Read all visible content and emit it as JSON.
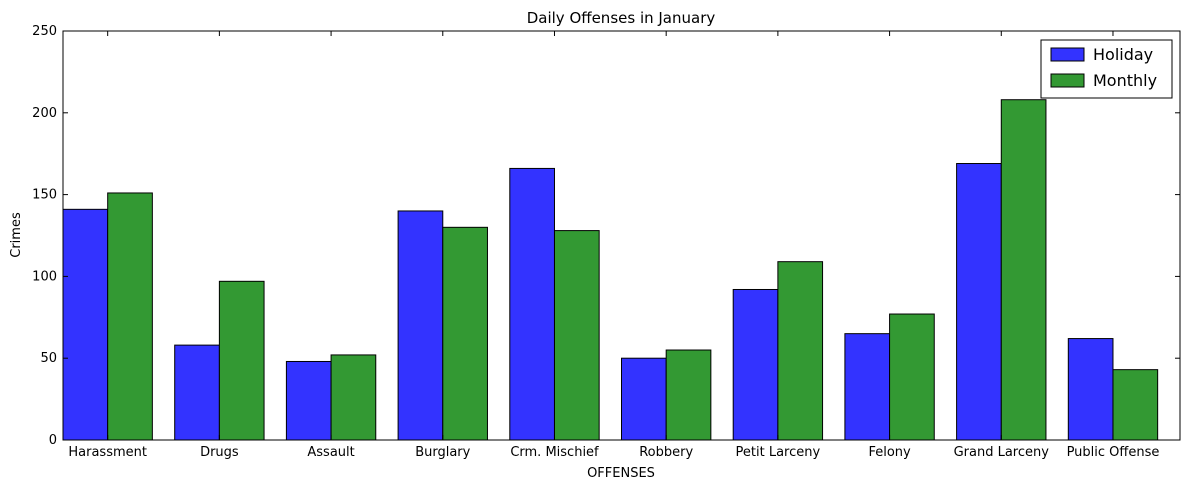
{
  "chart_data": {
    "type": "bar",
    "title": "Daily Offenses in January",
    "xlabel": "OFFENSES",
    "ylabel": "Crimes",
    "ylim": [
      0,
      250
    ],
    "yticks": [
      0,
      50,
      100,
      150,
      200,
      250
    ],
    "grid": false,
    "legend_position": "top-right",
    "categories": [
      "Harassment",
      "Drugs",
      "Assault",
      "Burglary",
      "Crm. Mischief",
      "Robbery",
      "Petit Larceny",
      "Felony",
      "Grand Larceny",
      "Public Offense"
    ],
    "series": [
      {
        "name": "Holiday",
        "color": "#3333ff",
        "values": [
          141,
          58,
          48,
          140,
          166,
          50,
          92,
          65,
          169,
          62
        ]
      },
      {
        "name": "Monthly",
        "color": "#339933",
        "values": [
          151,
          97,
          52,
          130,
          128,
          55,
          109,
          77,
          208,
          43
        ]
      }
    ]
  }
}
